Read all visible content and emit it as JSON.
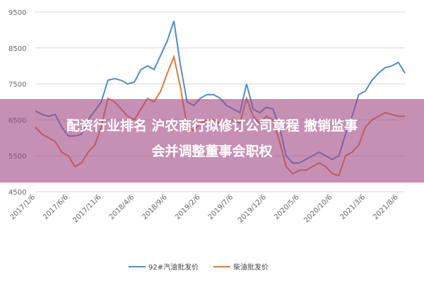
{
  "chart_data": {
    "type": "line",
    "categories": [
      "2017/1/6",
      null,
      null,
      null,
      null,
      "2017/6/6",
      null,
      null,
      null,
      null,
      "2017/11/6",
      null,
      null,
      null,
      null,
      "2018/4/6",
      null,
      null,
      null,
      null,
      "2018/9/6",
      null,
      null,
      null,
      null,
      "2019/2/6",
      null,
      null,
      null,
      null,
      "2019/7/6",
      null,
      null,
      null,
      null,
      "2019/12/6",
      null,
      null,
      null,
      null,
      "2020/5/6",
      null,
      null,
      null,
      null,
      "2020/10/6",
      null,
      null,
      null,
      null,
      "2021/3/6",
      null,
      null,
      null,
      null,
      "2021/8/6",
      null
    ],
    "series": [
      {
        "name": "92#汽油批发价",
        "color": "#4e8dce",
        "values": [
          6750,
          6650,
          6600,
          6650,
          6300,
          6050,
          6050,
          6100,
          6500,
          6750,
          7000,
          7600,
          7650,
          7600,
          7500,
          7550,
          7900,
          8000,
          7900,
          8300,
          8700,
          9250,
          8000,
          7000,
          6900,
          7100,
          7200,
          7200,
          7100,
          6900,
          6800,
          6700,
          7500,
          6800,
          6700,
          6850,
          6800,
          6300,
          5500,
          5300,
          5300,
          5400,
          5500,
          5600,
          5500,
          5400,
          5500,
          6100,
          6600,
          7200,
          7300,
          7600,
          7800,
          7950,
          8000,
          8100,
          7800
        ]
      },
      {
        "name": "柴油批发价",
        "color": "#e07b39",
        "values": [
          6300,
          6100,
          6000,
          5900,
          5600,
          5500,
          5200,
          5300,
          5600,
          5800,
          6300,
          7100,
          7000,
          6800,
          6600,
          6500,
          6800,
          7100,
          7000,
          7300,
          7800,
          8250,
          7400,
          6300,
          6200,
          6400,
          6500,
          6500,
          6400,
          6400,
          6500,
          6400,
          7100,
          6600,
          6400,
          6600,
          6500,
          5900,
          5200,
          5000,
          5100,
          5100,
          5200,
          5300,
          5200,
          5000,
          4950,
          5500,
          5600,
          5800,
          6300,
          6500,
          6600,
          6700,
          6650,
          6600,
          6600
        ]
      }
    ],
    "ylim": [
      4500,
      9500
    ],
    "yticks": [
      4500,
      5500,
      6500,
      7500,
      8500,
      9500
    ],
    "grid": true,
    "legend": "bottom"
  },
  "overlay": {
    "lines": [
      "配资行业排名 沪农商行拟修订公司章程 撤销监事",
      "会并调整董事会职权"
    ]
  }
}
